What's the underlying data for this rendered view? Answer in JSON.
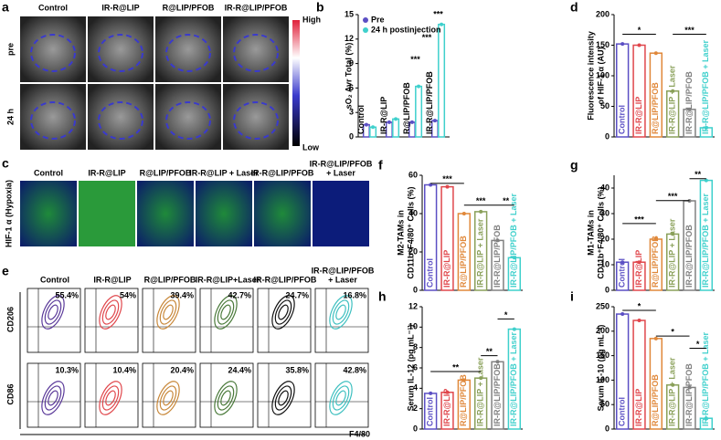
{
  "panels": {
    "a": {
      "letter": "a",
      "columns": [
        "Control",
        "IR-R@LIP",
        "R@LIP/PFOB",
        "IR-R@LIP/PFOB"
      ],
      "rows": [
        "pre",
        "24 h"
      ],
      "scale_high": "High",
      "scale_low": "Low"
    },
    "c": {
      "letter": "c",
      "columns": [
        "Control",
        "IR-R@LIP",
        "R@LIP/PFOB",
        "IR-R@LIP + Laser",
        "IR-R@LIP/PFOB",
        [
          "IR-R@LIP/PFOB",
          "+ Laser"
        ]
      ],
      "row_label": "HIF-1 α (Hypoxia)"
    },
    "e": {
      "letter": "e",
      "columns": [
        "Control",
        "IR-R@LIP",
        "R@LIP/PFOB",
        "IR-R@LIP+Laser",
        "IR-R@LIP/PFOB",
        [
          "IR-R@LIP/PFOB",
          "+ Laser"
        ]
      ],
      "top_percent": [
        "55.4%",
        "54%",
        "39.4%",
        "42.7%",
        "24.7%",
        "16.8%"
      ],
      "bottom_percent": [
        "10.3%",
        "10.4%",
        "20.4%",
        "24.4%",
        "35.8%",
        "42.8%"
      ],
      "y_top": "CD206",
      "y_bottom": "CD86",
      "x_label": "F4/80"
    }
  },
  "chart_data": [
    {
      "type": "bar",
      "label": "b",
      "ylabel": [
        "sO₂ Avr Total (%)"
      ],
      "categories": [
        "Control",
        "IR-R@LIP",
        "R@LIP/PFOB",
        "IR-R@LIP/PFOB"
      ],
      "series": [
        {
          "name": "Pre",
          "color": "#5b4fc4",
          "values": [
            1.5,
            1.8,
            1.8,
            2.0
          ]
        },
        {
          "name": "24 h postinjection",
          "color": "#3fd0cc",
          "values": [
            1.2,
            2.2,
            6.2,
            13.8
          ]
        }
      ],
      "ylim": [
        0,
        15
      ],
      "yticks": [
        0,
        3,
        6,
        9,
        12,
        15
      ],
      "annotations": [
        "***",
        "***",
        "***"
      ]
    },
    {
      "type": "bar",
      "label": "d",
      "ylabel": [
        "Fluorescence intensity",
        "of HIF-1 α (AU)"
      ],
      "categories": [
        "Control",
        "IR-R@LIP",
        "R@LIP/PFOB",
        "IR-R@LIP + Laser",
        "IR-R@LIP/PFOB",
        "IR-R@LIP/PFOB + Laser"
      ],
      "values": [
        152,
        150,
        137,
        75,
        45,
        15
      ],
      "colors": [
        "#5b4fc4",
        "#e0474c",
        "#e0883a",
        "#8aa05a",
        "#808080",
        "#3fd0cc"
      ],
      "ylim": [
        0,
        200
      ],
      "yticks": [
        0,
        50,
        100,
        150,
        200
      ],
      "annotations": [
        "*",
        "***"
      ]
    },
    {
      "type": "bar",
      "label": "f",
      "ylabel": [
        "M2-TAMs in",
        "CD11b⁺F4/80⁺ Cells (%)"
      ],
      "categories": [
        "Control",
        "IR-R@LIP",
        "R@LIP/PFOB",
        "IR-R@LIP + Laser",
        "IR-R@LIP/PFOB",
        "IR-R@LIP/PFOB + Laser"
      ],
      "values": [
        55,
        54,
        40,
        41,
        26,
        17
      ],
      "colors": [
        "#5b4fc4",
        "#e0474c",
        "#e0883a",
        "#8aa05a",
        "#808080",
        "#3fd0cc"
      ],
      "ylim": [
        0,
        60
      ],
      "yticks": [
        0,
        20,
        40,
        60
      ],
      "annotations": [
        "***",
        "***",
        "**"
      ]
    },
    {
      "type": "bar",
      "label": "g",
      "ylabel": [
        "M1-TAMs in",
        "CD11b⁺F4/80⁺ Cells (%)"
      ],
      "categories": [
        "Control",
        "IR-R@LIP",
        "R@LIP/PFOB",
        "IR-R@LIP + Laser",
        "IR-R@LIP/PFOB",
        "IR-R@LIP/PFOB + Laser"
      ],
      "values": [
        11,
        11,
        20,
        22,
        35,
        43
      ],
      "colors": [
        "#5b4fc4",
        "#e0474c",
        "#e0883a",
        "#8aa05a",
        "#808080",
        "#3fd0cc"
      ],
      "ylim": [
        0,
        45
      ],
      "yticks": [
        0,
        10,
        20,
        30,
        40
      ],
      "annotations": [
        "***",
        "***",
        "**"
      ]
    },
    {
      "type": "bar",
      "label": "h",
      "ylabel": [
        "Serum IL-12 (pg mL⁻¹)"
      ],
      "categories": [
        "Control",
        "IR-R@LIP",
        "R@LIP/PFOB",
        "IR-R@LIP + Laser",
        "IR-R@LIP/PFOB",
        "IR-R@LIP/PFOB + Laser"
      ],
      "values": [
        3.5,
        3.6,
        4.8,
        5.0,
        6.6,
        9.8
      ],
      "colors": [
        "#5b4fc4",
        "#e0474c",
        "#e0883a",
        "#8aa05a",
        "#808080",
        "#3fd0cc"
      ],
      "ylim": [
        0,
        12
      ],
      "yticks": [
        0,
        2,
        4,
        6,
        8,
        10,
        12
      ],
      "annotations": [
        "**",
        "**",
        "*"
      ]
    },
    {
      "type": "bar",
      "label": "i",
      "ylabel": [
        "Serum IL-10 (pg mL⁻¹)"
      ],
      "categories": [
        "Control",
        "IR-R@LIP",
        "R@LIP/PFOB",
        "IR-R@LIP + Laser",
        "IR-R@LIP/PFOB",
        "IR-R@LIP/PFOB + Laser"
      ],
      "values": [
        235,
        222,
        185,
        90,
        85,
        22
      ],
      "colors": [
        "#5b4fc4",
        "#e0474c",
        "#e0883a",
        "#8aa05a",
        "#808080",
        "#3fd0cc"
      ],
      "ylim": [
        0,
        250
      ],
      "yticks": [
        0,
        50,
        100,
        150,
        200,
        250
      ],
      "annotations": [
        "*",
        "*",
        "*"
      ]
    }
  ]
}
